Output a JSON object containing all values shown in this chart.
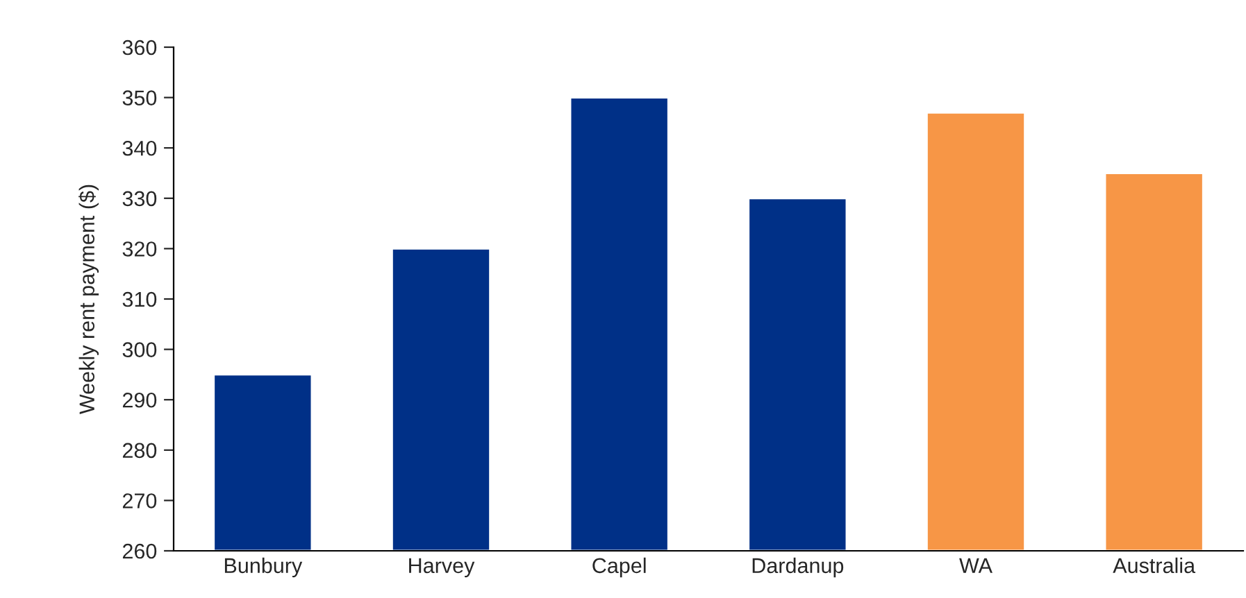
{
  "chart_data": {
    "type": "bar",
    "ylabel": "Weekly rent payment ($)",
    "categories": [
      "Bunbury",
      "Harvey",
      "Capel",
      "Dardanup",
      "WA",
      "Australia"
    ],
    "values": [
      295,
      320,
      350,
      330,
      347,
      335
    ],
    "colors": [
      "#003087",
      "#003087",
      "#003087",
      "#003087",
      "#f79646",
      "#f79646"
    ],
    "ylim": [
      260,
      360
    ],
    "yticks": [
      260,
      270,
      280,
      290,
      300,
      310,
      320,
      330,
      340,
      350,
      360
    ],
    "grid": false
  }
}
